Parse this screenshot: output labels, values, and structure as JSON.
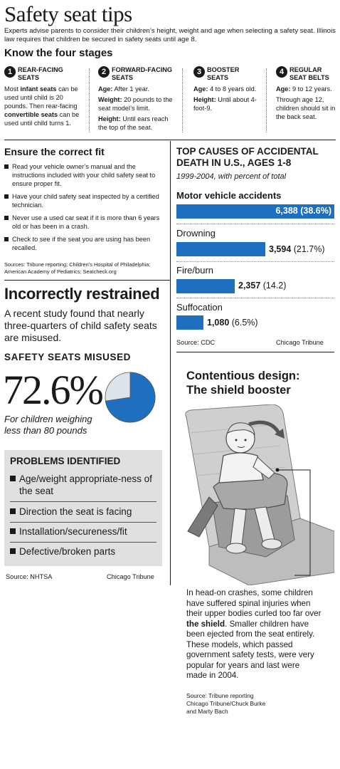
{
  "title": "Safety seat tips",
  "intro": "Experts advise parents to consider their children’s height, weight and age when selecting a safety seat. Illinois law requires that children be secured in safety seats until age 8.",
  "stages": {
    "heading": "Know the four stages",
    "items": [
      {
        "num": "1",
        "head_line1": "REAR-FACING",
        "head_line2": "SEATS",
        "body_pre": "Most ",
        "body_b1": "infant seats",
        "body_mid": " can be used until child is 20 pounds. Then rear-facing ",
        "body_b2": "convertible seats",
        "body_post": " can be used until child turns 1."
      },
      {
        "num": "2",
        "head_line1": "FORWARD-FACING",
        "head_line2": "SEATS",
        "age_label": "Age:",
        "age": " After 1 year.",
        "weight_label": "Weight:",
        "weight": " 20 pounds to the seat model’s limit.",
        "height_label": "Height:",
        "height": " Until ears reach the top of the seat."
      },
      {
        "num": "3",
        "head_line1": "BOOSTER",
        "head_line2": "SEATS",
        "age_label": "Age:",
        "age": " 4 to 8 years old.",
        "height_label": "Height:",
        "height": " Until about 4-foot-9."
      },
      {
        "num": "4",
        "head_line1": "REGULAR",
        "head_line2": "SEAT BELTS",
        "age_label": "Age:",
        "age": " 9 to 12 years.",
        "note": "Through age 12, children should sit in the back seat."
      }
    ]
  },
  "fit": {
    "heading": "Ensure the correct fit",
    "items": [
      "Read your vehicle owner’s manual and the instructions included with your child safety seat to ensure proper fit.",
      "Have your child safety seat inspected by a certified technician.",
      "Never use a used car seat if it is more than 6 years old or has been in a crash.",
      "Check to see if the seat you are using has been recalled."
    ],
    "sources": "Sources: Tribune reporting; Children’s Hospital of Philadelphia; American Academy of Pediatrics; Seatcheck.org"
  },
  "chart_data": {
    "type": "bar",
    "title": "TOP CAUSES OF ACCIDENTAL DEATH IN U.S., AGES 1-8",
    "subtitle": "1999-2004, with percent of total",
    "categories": [
      "Motor vehicle accidents",
      "Drowning",
      "Fire/burn",
      "Suffocation"
    ],
    "values": [
      6388,
      3594,
      2357,
      1080
    ],
    "value_labels": [
      "6,388",
      "3,594",
      "2,357",
      "1,080"
    ],
    "percent_labels": [
      "(38.6%)",
      "(21.7%)",
      "(14.2)",
      "(6.5%)"
    ],
    "orientation": "horizontal",
    "bar_color": "#1f6fbf",
    "source": "Source: CDC",
    "credit": "Chicago Tribune"
  },
  "incorrect": {
    "heading": "Incorrectly restrained",
    "text": "A recent study found that nearly three-quarters of child safety seats are misused.",
    "misused_heading": "SAFETY SEATS MISUSED",
    "big_number": "72.6%",
    "pie_percent": 72.6,
    "pie_color": "#1f6fbf",
    "pie_rest_color": "#dde3ea",
    "caption": "For children weighing less than 80 pounds"
  },
  "problems": {
    "heading": "PROBLEMS IDENTIFIED",
    "items": [
      "Age/weight appropriate-ness of the seat",
      "Direction the seat is facing",
      "Installation/secureness/fit",
      "Defective/broken parts"
    ],
    "source": "Source: NHTSA",
    "credit": "Chicago Tribune"
  },
  "design": {
    "heading_line1": "Contentious design:",
    "heading_line2": "The shield booster",
    "text_pre": "In head-on crashes, some children have suffered spinal injuries when their upper bodies curled too far over ",
    "text_bold": "the shield",
    "text_post": ". Smaller children have been ejected from the seat entirely. These models, which passed government safety tests, were very popular for years and last were made in 2004.",
    "source_line1": "Source: Tribune reporting",
    "source_line2": "Chicago Tribune/Chuck Burke",
    "source_line3": "and Marty Bach"
  }
}
